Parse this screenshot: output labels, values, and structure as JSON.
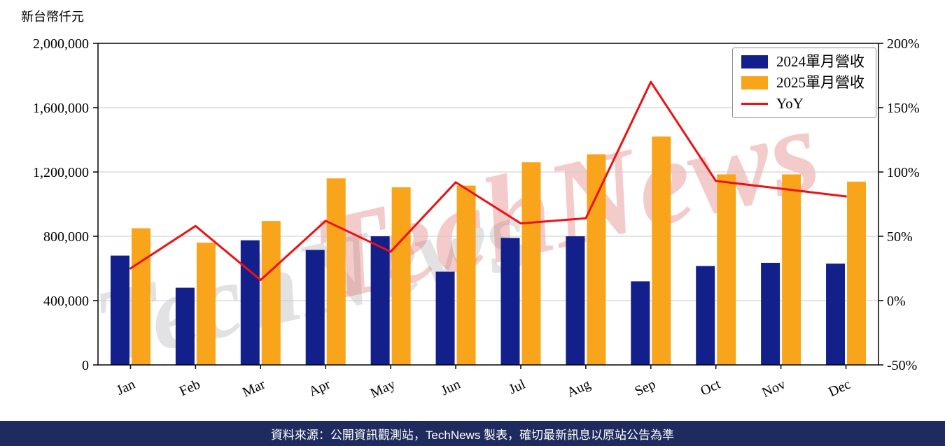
{
  "watermark": {
    "text": "TechNews"
  },
  "footer": {
    "text": "資料來源：公開資訊觀測站，TechNews 製表，確切最新訊息以原站公告為準"
  },
  "colors": {
    "bar_2024": "#131f8b",
    "bar_2025": "#f9a51b",
    "yoy_line": "#ed1111",
    "grid": "#c8c8c8",
    "axis": "#000000",
    "footer_bg": "#1f2b5e",
    "footer_text": "#ffffff",
    "watermark_gray": "#999999",
    "watermark_red": "#dd5555"
  },
  "chart_data": {
    "type": "bar",
    "title": "",
    "categories": [
      "Jan",
      "Feb",
      "Mar",
      "Apr",
      "May",
      "Jun",
      "Jul",
      "Aug",
      "Sep",
      "Oct",
      "Nov",
      "Dec"
    ],
    "series": [
      {
        "name": "2024單月營收",
        "type": "bar",
        "axis": "left",
        "color": "#131f8b",
        "values": [
          680000,
          480000,
          775000,
          715000,
          800000,
          580000,
          790000,
          800000,
          520000,
          615000,
          635000,
          630000
        ]
      },
      {
        "name": "2025單月營收",
        "type": "bar",
        "axis": "left",
        "color": "#f9a51b",
        "values": [
          850000,
          760000,
          895000,
          1160000,
          1105000,
          1115000,
          1260000,
          1310000,
          1420000,
          1185000,
          1185000,
          1140000
        ]
      },
      {
        "name": "YoY",
        "type": "line",
        "axis": "right",
        "color": "#ed1111",
        "values": [
          25,
          58,
          16,
          62,
          38,
          92,
          60,
          64,
          170,
          93,
          87,
          81
        ]
      }
    ],
    "left_axis": {
      "label": "新台幣仟元",
      "min": 0,
      "max": 2000000,
      "ticks": [
        0,
        400000,
        800000,
        1200000,
        1600000,
        2000000
      ]
    },
    "right_axis": {
      "min": -50,
      "max": 200,
      "ticks": [
        -50,
        0,
        50,
        100,
        150,
        200
      ],
      "suffix": "%"
    },
    "grid": true,
    "legend_position": "top-right"
  }
}
